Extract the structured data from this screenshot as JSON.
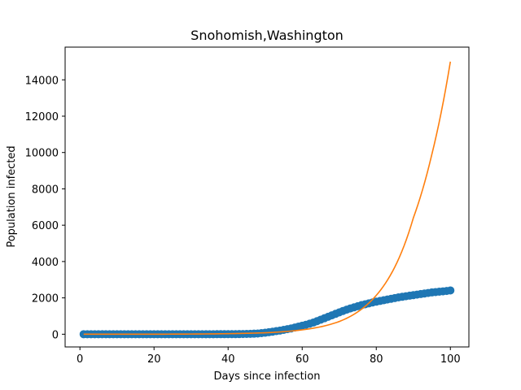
{
  "chart_data": {
    "type": "scatter",
    "title": "Snohomish,Washington",
    "xlabel": "Days since infection",
    "ylabel": "Population infected",
    "xlim": [
      -4,
      105
    ],
    "ylim": [
      -700,
      15800
    ],
    "xticks": [
      0,
      20,
      40,
      60,
      80,
      100
    ],
    "yticks": [
      0,
      2000,
      4000,
      6000,
      8000,
      10000,
      12000,
      14000
    ],
    "grid": false,
    "series": [
      {
        "kind": "scatter",
        "color": "#1f77b4",
        "x": [
          1,
          2,
          3,
          4,
          5,
          6,
          7,
          8,
          9,
          10,
          11,
          12,
          13,
          14,
          15,
          16,
          17,
          18,
          19,
          20,
          21,
          22,
          23,
          24,
          25,
          26,
          27,
          28,
          29,
          30,
          31,
          32,
          33,
          34,
          35,
          36,
          37,
          38,
          39,
          40,
          41,
          42,
          43,
          44,
          45,
          46,
          47,
          48,
          49,
          50,
          51,
          52,
          53,
          54,
          55,
          56,
          57,
          58,
          59,
          60,
          61,
          62,
          63,
          64,
          65,
          66,
          67,
          68,
          69,
          70,
          71,
          72,
          73,
          74,
          75,
          76,
          77,
          78,
          79,
          80,
          81,
          82,
          83,
          84,
          85,
          86,
          87,
          88,
          89,
          90,
          91,
          92,
          93,
          94,
          95,
          96,
          97,
          98,
          99,
          100
        ],
        "y": [
          1,
          1,
          1,
          1,
          1,
          1,
          1,
          1,
          1,
          1,
          1,
          1,
          1,
          1,
          1,
          1,
          1,
          1,
          1,
          1,
          1,
          1,
          1,
          1,
          1,
          1,
          1,
          1,
          1,
          1,
          1,
          1,
          1,
          1,
          1,
          1,
          2,
          2,
          3,
          4,
          5,
          6,
          8,
          10,
          15,
          20,
          30,
          40,
          60,
          80,
          110,
          140,
          170,
          200,
          240,
          280,
          320,
          370,
          420,
          470,
          520,
          580,
          640,
          720,
          800,
          880,
          960,
          1040,
          1120,
          1200,
          1280,
          1350,
          1420,
          1480,
          1540,
          1600,
          1650,
          1700,
          1750,
          1790,
          1830,
          1870,
          1910,
          1950,
          1990,
          2030,
          2060,
          2090,
          2120,
          2150,
          2180,
          2210,
          2240,
          2270,
          2300,
          2320,
          2340,
          2360,
          2380,
          2410
        ]
      },
      {
        "kind": "line",
        "color": "#ff7f0e",
        "x": [
          1,
          10,
          20,
          30,
          40,
          45,
          50,
          55,
          60,
          65,
          70,
          75,
          80,
          85,
          90,
          95,
          100
        ],
        "y": [
          0,
          0,
          0,
          10,
          30,
          50,
          80,
          140,
          240,
          410,
          700,
          1230,
          2140,
          3700,
          6400,
          9900,
          15000
        ]
      }
    ]
  }
}
